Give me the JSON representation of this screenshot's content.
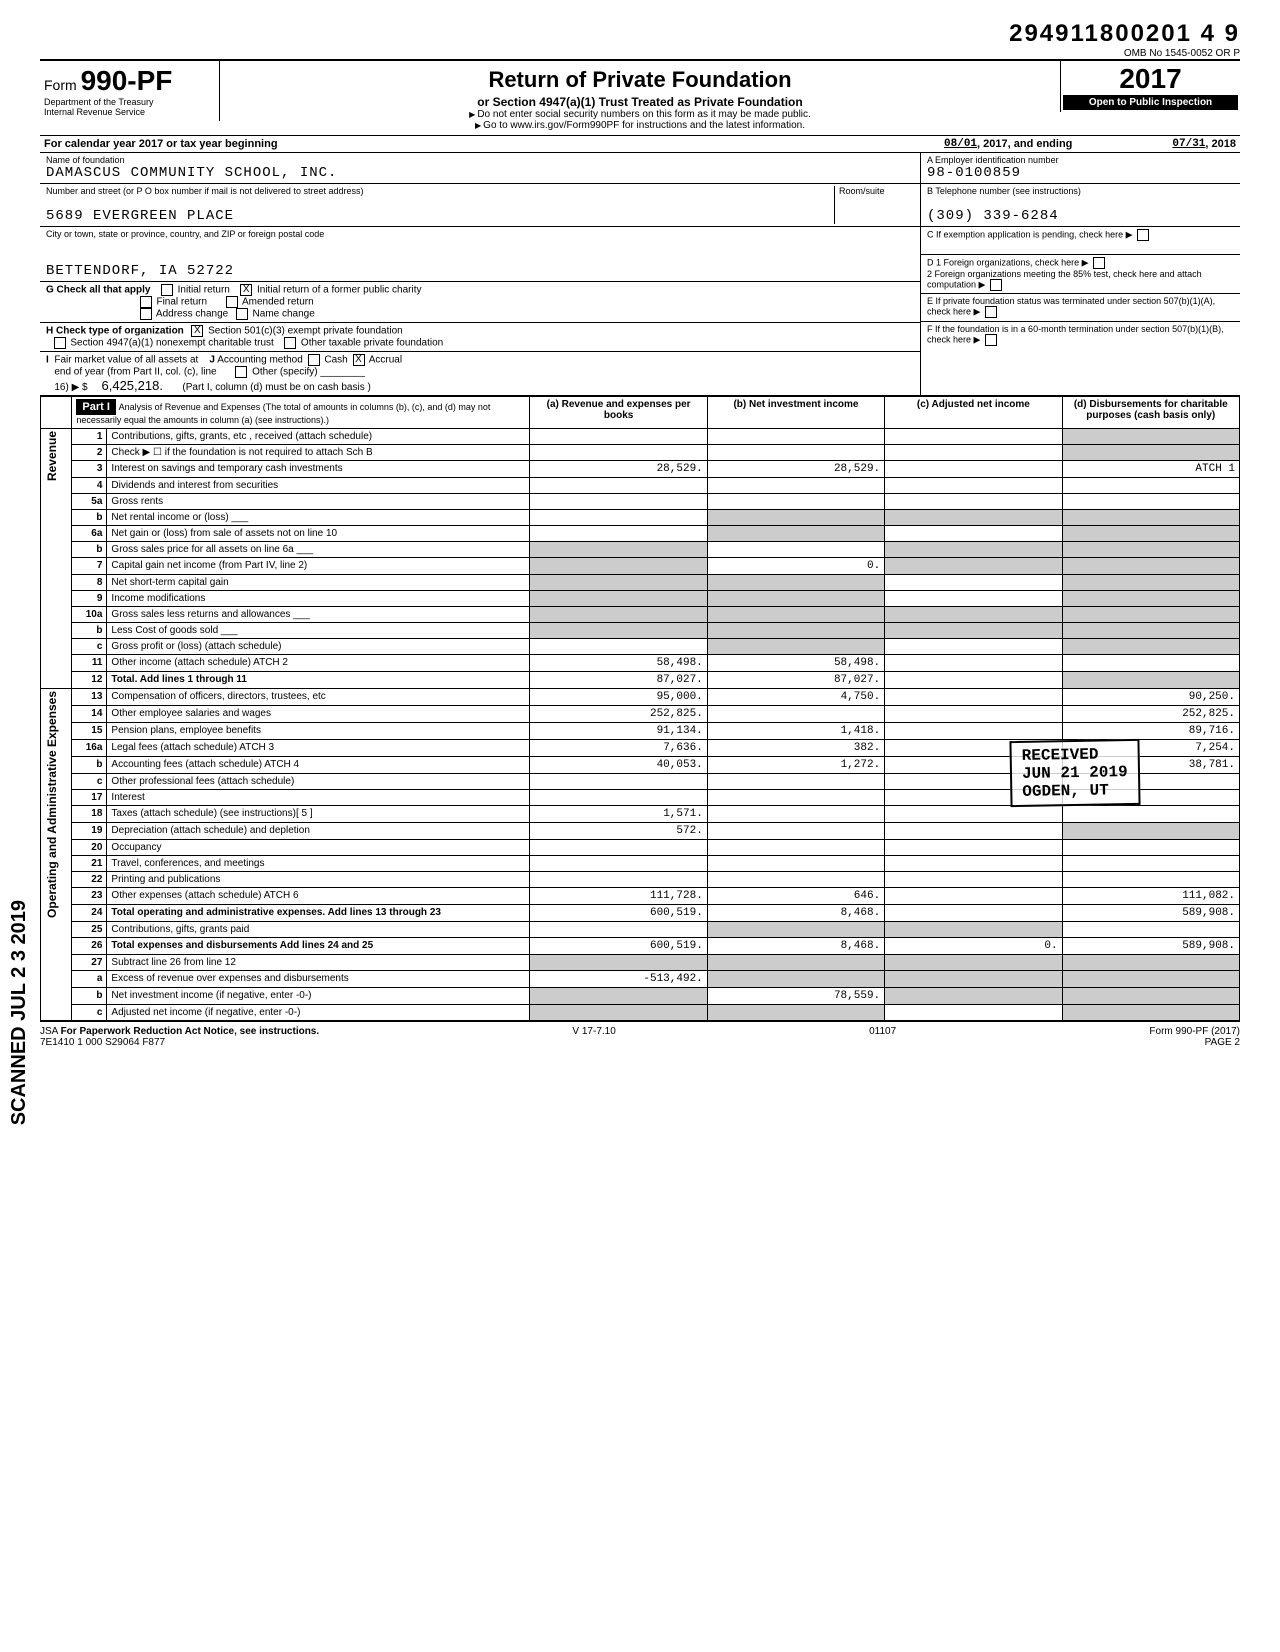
{
  "header": {
    "doc_number": "294911800201 4  9",
    "omb": "OMB No 1545-0052",
    "prior": "OR  P",
    "form_label": "Form",
    "form_number": "990-PF",
    "title": "Return of Private Foundation",
    "subtitle": "or Section 4947(a)(1) Trust Treated as Private Foundation",
    "note1": "Do not enter social security numbers on this form as it may be made public.",
    "note2": "Go to www.irs.gov/Form990PF for instructions and the latest information.",
    "dept1": "Department of the Treasury",
    "dept2": "Internal Revenue Service",
    "year": "2017",
    "open": "Open to Public Inspection"
  },
  "calendar": {
    "text": "For calendar year 2017 or tax year beginning",
    "begin": "08/01",
    "begin_year": ", 2017, and ending",
    "end": "07/31",
    "end_year": ", 2018"
  },
  "foundation": {
    "name_label": "Name of foundation",
    "name": "DAMASCUS COMMUNITY SCHOOL, INC.",
    "addr_label": "Number and street (or P O box number if mail is not delivered to street address)",
    "room_label": "Room/suite",
    "addr": "5689 EVERGREEN PLACE",
    "city_label": "City or town, state or province, country, and ZIP or foreign postal code",
    "city": "BETTENDORF, IA 52722",
    "ein_label": "A  Employer identification number",
    "ein": "98-0100859",
    "tel_label": "B  Telephone number (see instructions)",
    "tel": "(309) 339-6284",
    "c_label": "C  If exemption application is pending, check here",
    "d1": "D 1  Foreign organizations, check here",
    "d2": "2  Foreign organizations meeting the 85% test, check here and attach computation",
    "e": "E  If private foundation status was terminated under section 507(b)(1)(A), check here",
    "f": "F  If the foundation is in a 60-month termination under section 507(b)(1)(B), check here"
  },
  "section_g": {
    "label": "G  Check all that apply",
    "initial": "Initial return",
    "initial_former": "Initial return of a former public charity",
    "final": "Final return",
    "amended": "Amended return",
    "addr_change": "Address change",
    "name_change": "Name change",
    "initial_former_checked": "X"
  },
  "section_h": {
    "label": "H  Check type of organization",
    "opt1": "Section 501(c)(3) exempt private foundation",
    "opt1_checked": "X",
    "opt2": "Section 4947(a)(1) nonexempt charitable trust",
    "opt3": "Other taxable private foundation"
  },
  "section_i": {
    "label": "I  Fair market value of all assets at end of year (from Part II, col. (c), line 16)",
    "value": "6,425,218.",
    "j_label": "J Accounting method",
    "cash": "Cash",
    "accrual": "Accrual",
    "accrual_checked": "X",
    "other": "Other (specify)",
    "note": "(Part I, column (d) must be on cash basis )"
  },
  "part1": {
    "header": "Part I",
    "title": "Analysis of Revenue and Expenses (The total of amounts in columns (b), (c), and (d) may not necessarily equal the amounts in column (a) (see instructions).)",
    "col_a": "(a) Revenue and expenses per books",
    "col_b": "(b) Net investment income",
    "col_c": "(c) Adjusted net income",
    "col_d": "(d) Disbursements for charitable purposes (cash basis only)",
    "revenue_label": "Revenue",
    "expense_label": "Operating and Administrative Expenses"
  },
  "rows": [
    {
      "n": "1",
      "desc": "Contributions, gifts, grants, etc , received (attach schedule)",
      "a": "",
      "b": "",
      "c": "",
      "d": "",
      "d_shaded": true
    },
    {
      "n": "2",
      "desc": "Check ▶ ☐ if the foundation is not required to attach Sch B",
      "a": "",
      "b": "",
      "c": "",
      "d": "",
      "d_shaded": true
    },
    {
      "n": "3",
      "desc": "Interest on savings and temporary cash investments",
      "a": "28,529.",
      "b": "28,529.",
      "c": "",
      "d": "ATCH 1",
      "d_shaded": false
    },
    {
      "n": "4",
      "desc": "Dividends and interest from securities",
      "a": "",
      "b": "",
      "c": "",
      "d": ""
    },
    {
      "n": "5a",
      "desc": "Gross rents",
      "a": "",
      "b": "",
      "c": "",
      "d": ""
    },
    {
      "n": "b",
      "desc": "Net rental income or (loss) ___",
      "a": "",
      "b": "",
      "c": "",
      "d": "",
      "b_shaded": true,
      "c_shaded": true,
      "d_shaded": true
    },
    {
      "n": "6a",
      "desc": "Net gain or (loss) from sale of assets not on line 10",
      "a": "",
      "b": "",
      "c": "",
      "d": "",
      "b_shaded": true,
      "d_shaded": true
    },
    {
      "n": "b",
      "desc": "Gross sales price for all assets on line 6a ___",
      "a": "",
      "b": "",
      "c": "",
      "d": "",
      "a_shaded": true,
      "c_shaded": true,
      "d_shaded": true
    },
    {
      "n": "7",
      "desc": "Capital gain net income (from Part IV, line 2)",
      "a": "",
      "b": "0.",
      "c": "",
      "d": "",
      "a_shaded": true,
      "c_shaded": true,
      "d_shaded": true
    },
    {
      "n": "8",
      "desc": "Net short-term capital gain",
      "a": "",
      "b": "",
      "c": "",
      "d": "",
      "a_shaded": true,
      "b_shaded": true,
      "d_shaded": true
    },
    {
      "n": "9",
      "desc": "Income modifications",
      "a": "",
      "b": "",
      "c": "",
      "d": "",
      "a_shaded": true,
      "b_shaded": true,
      "d_shaded": true
    },
    {
      "n": "10a",
      "desc": "Gross sales less returns and allowances ___",
      "a": "",
      "b": "",
      "c": "",
      "d": "",
      "a_shaded": true,
      "b_shaded": true,
      "c_shaded": true,
      "d_shaded": true
    },
    {
      "n": "b",
      "desc": "Less Cost of goods sold ___",
      "a": "",
      "b": "",
      "c": "",
      "d": "",
      "a_shaded": true,
      "b_shaded": true,
      "c_shaded": true,
      "d_shaded": true
    },
    {
      "n": "c",
      "desc": "Gross profit or (loss) (attach schedule)",
      "a": "",
      "b": "",
      "c": "",
      "d": "",
      "b_shaded": true,
      "d_shaded": true
    },
    {
      "n": "11",
      "desc": "Other income (attach schedule) ATCH  2",
      "a": "58,498.",
      "b": "58,498.",
      "c": "",
      "d": ""
    },
    {
      "n": "12",
      "desc": "Total. Add lines 1 through 11",
      "a": "87,027.",
      "b": "87,027.",
      "c": "",
      "d": "",
      "bold": true,
      "d_shaded": true
    },
    {
      "n": "13",
      "desc": "Compensation of officers, directors, trustees, etc",
      "a": "95,000.",
      "b": "4,750.",
      "c": "",
      "d": "90,250."
    },
    {
      "n": "14",
      "desc": "Other employee salaries and wages",
      "a": "252,825.",
      "b": "",
      "c": "",
      "d": "252,825."
    },
    {
      "n": "15",
      "desc": "Pension plans, employee benefits",
      "a": "91,134.",
      "b": "1,418.",
      "c": "",
      "d": "89,716."
    },
    {
      "n": "16a",
      "desc": "Legal fees (attach schedule) ATCH  3",
      "a": "7,636.",
      "b": "382.",
      "c": "",
      "d": "7,254."
    },
    {
      "n": "b",
      "desc": "Accounting fees (attach schedule) ATCH  4",
      "a": "40,053.",
      "b": "1,272.",
      "c": "",
      "d": "38,781."
    },
    {
      "n": "c",
      "desc": "Other professional fees (attach schedule)",
      "a": "",
      "b": "",
      "c": "",
      "d": ""
    },
    {
      "n": "17",
      "desc": "Interest",
      "a": "",
      "b": "",
      "c": "",
      "d": ""
    },
    {
      "n": "18",
      "desc": "Taxes (attach schedule) (see instructions)[ 5 ]",
      "a": "1,571.",
      "b": "",
      "c": "",
      "d": ""
    },
    {
      "n": "19",
      "desc": "Depreciation (attach schedule) and depletion",
      "a": "572.",
      "b": "",
      "c": "",
      "d": "",
      "d_shaded": true
    },
    {
      "n": "20",
      "desc": "Occupancy",
      "a": "",
      "b": "",
      "c": "",
      "d": ""
    },
    {
      "n": "21",
      "desc": "Travel, conferences, and meetings",
      "a": "",
      "b": "",
      "c": "",
      "d": ""
    },
    {
      "n": "22",
      "desc": "Printing and publications",
      "a": "",
      "b": "",
      "c": "",
      "d": ""
    },
    {
      "n": "23",
      "desc": "Other expenses (attach schedule) ATCH  6",
      "a": "111,728.",
      "b": "646.",
      "c": "",
      "d": "111,082."
    },
    {
      "n": "24",
      "desc": "Total operating and administrative expenses. Add lines 13 through 23",
      "a": "600,519.",
      "b": "8,468.",
      "c": "",
      "d": "589,908.",
      "bold": true
    },
    {
      "n": "25",
      "desc": "Contributions, gifts, grants paid",
      "a": "",
      "b": "",
      "c": "",
      "d": "",
      "b_shaded": true,
      "c_shaded": true
    },
    {
      "n": "26",
      "desc": "Total expenses and disbursements Add lines 24 and 25",
      "a": "600,519.",
      "b": "8,468.",
      "c": "0.",
      "d": "589,908.",
      "bold": true
    },
    {
      "n": "27",
      "desc": "Subtract line 26 from line 12",
      "a": "",
      "b": "",
      "c": "",
      "d": "",
      "a_shaded": true,
      "b_shaded": true,
      "c_shaded": true,
      "d_shaded": true
    },
    {
      "n": "a",
      "desc": "Excess of revenue over expenses and disbursements",
      "a": "-513,492.",
      "b": "",
      "c": "",
      "d": "",
      "b_shaded": true,
      "c_shaded": true,
      "d_shaded": true
    },
    {
      "n": "b",
      "desc": "Net investment income (if negative, enter -0-)",
      "a": "",
      "b": "78,559.",
      "c": "",
      "d": "",
      "a_shaded": true,
      "c_shaded": true,
      "d_shaded": true
    },
    {
      "n": "c",
      "desc": "Adjusted net income (if negative, enter -0-)",
      "a": "",
      "b": "",
      "c": "",
      "d": "",
      "a_shaded": true,
      "b_shaded": true,
      "d_shaded": true
    }
  ],
  "stamp": {
    "line1": "RECEIVED",
    "line2": "JUN 21 2019",
    "line3": "OGDEN, UT"
  },
  "scanned": "SCANNED JUL 2 3 2019",
  "footer": {
    "jsa": "JSA",
    "paperwork": "For Paperwork Reduction Act Notice, see instructions.",
    "code1": "7E1410 1 000",
    "code2": "S29064 F877",
    "version": "V 17-7.10",
    "seq": "01107",
    "form": "Form 990-PF (2017)",
    "page": "PAGE 2"
  }
}
